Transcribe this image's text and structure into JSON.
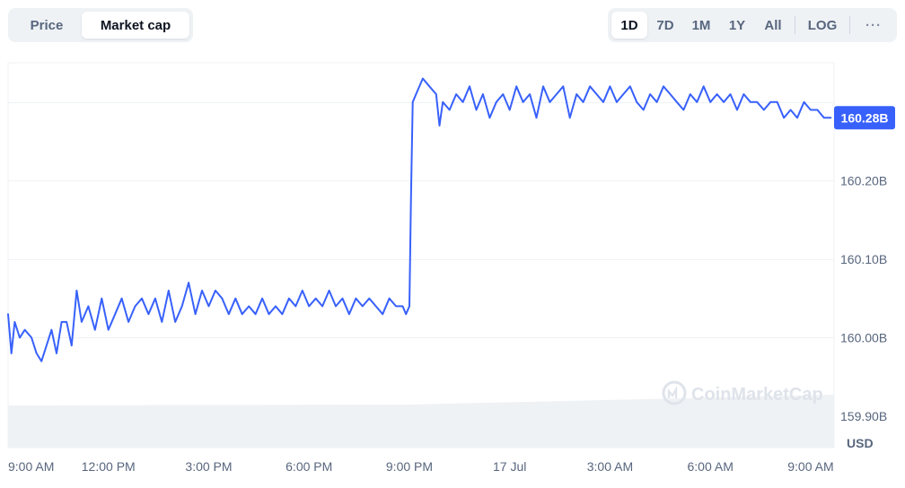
{
  "toggle": {
    "options": [
      {
        "label": "Price",
        "active": false
      },
      {
        "label": "Market cap",
        "active": true
      }
    ]
  },
  "ranges": {
    "options": [
      {
        "label": "1D",
        "active": true
      },
      {
        "label": "7D",
        "active": false
      },
      {
        "label": "1M",
        "active": false
      },
      {
        "label": "1Y",
        "active": false
      },
      {
        "label": "All",
        "active": false
      }
    ],
    "log_label": "LOG",
    "more_label": "···"
  },
  "watermark": "CoinMarketCap",
  "colors": {
    "line": "#3861fb",
    "grid": "#eff2f5",
    "axis_text": "#58667e",
    "volume": "#eff2f5",
    "current_tag_bg": "#3861fb",
    "current_tag_text": "#ffffff",
    "toolbar_bg": "#eff2f5"
  },
  "chart_data": {
    "type": "line",
    "title": "",
    "xlabel": "",
    "ylabel": "USD",
    "unit": "USD",
    "ylim": [
      159.86,
      160.35
    ],
    "y_ticks": [
      {
        "value": 159.9,
        "label": "159.90B"
      },
      {
        "value": 160.0,
        "label": "160.00B"
      },
      {
        "value": 160.1,
        "label": "160.10B"
      },
      {
        "value": 160.2,
        "label": "160.20B"
      }
    ],
    "x_ticks": [
      "9:00 AM",
      "12:00 PM",
      "3:00 PM",
      "6:00 PM",
      "9:00 PM",
      "17 Jul",
      "3:00 AM",
      "6:00 AM",
      "9:00 AM"
    ],
    "x_tick_hours": [
      0,
      3,
      6,
      9,
      12,
      15,
      18,
      21,
      24
    ],
    "x_range_hours": [
      0,
      24.7
    ],
    "current_value": 160.28,
    "current_label": "160.28B",
    "grid": true,
    "legend": "none",
    "series": [
      {
        "x_hours": [
          0,
          0.1,
          0.2,
          0.35,
          0.5,
          0.7,
          0.85,
          1.0,
          1.15,
          1.3,
          1.45,
          1.6,
          1.75,
          1.9,
          2.05,
          2.2,
          2.4,
          2.6,
          2.8,
          3.0,
          3.2,
          3.4,
          3.6,
          3.8,
          4.0,
          4.2,
          4.4,
          4.6,
          4.8,
          5.0,
          5.2,
          5.4,
          5.6,
          5.8,
          6.0,
          6.2,
          6.4,
          6.6,
          6.8,
          7.0,
          7.2,
          7.4,
          7.6,
          7.8,
          8.0,
          8.2,
          8.4,
          8.6,
          8.8,
          9.0,
          9.2,
          9.4,
          9.6,
          9.8,
          10.0,
          10.2,
          10.4,
          10.6,
          10.8,
          11.0,
          11.2,
          11.4,
          11.6,
          11.8,
          11.9,
          12.0,
          12.05,
          12.1,
          12.2,
          12.4,
          12.6,
          12.8,
          12.9,
          13.0,
          13.2,
          13.4,
          13.6,
          13.8,
          14.0,
          14.2,
          14.4,
          14.6,
          14.8,
          15.0,
          15.2,
          15.4,
          15.6,
          15.8,
          16.0,
          16.2,
          16.4,
          16.6,
          16.8,
          17.0,
          17.2,
          17.4,
          17.6,
          17.8,
          18.0,
          18.2,
          18.4,
          18.6,
          18.8,
          19.0,
          19.2,
          19.4,
          19.6,
          19.8,
          20.0,
          20.2,
          20.4,
          20.6,
          20.8,
          21.0,
          21.2,
          21.4,
          21.6,
          21.8,
          22.0,
          22.2,
          22.4,
          22.6,
          22.8,
          23.0,
          23.2,
          23.4,
          23.6,
          23.8,
          24.0,
          24.2,
          24.4,
          24.6
        ],
        "values": [
          160.03,
          159.98,
          160.02,
          160.0,
          160.01,
          160.0,
          159.98,
          159.97,
          159.99,
          160.01,
          159.98,
          160.02,
          160.02,
          159.99,
          160.06,
          160.02,
          160.04,
          160.01,
          160.05,
          160.01,
          160.03,
          160.05,
          160.02,
          160.04,
          160.05,
          160.03,
          160.05,
          160.02,
          160.06,
          160.02,
          160.04,
          160.07,
          160.03,
          160.06,
          160.04,
          160.06,
          160.05,
          160.03,
          160.05,
          160.03,
          160.04,
          160.03,
          160.05,
          160.03,
          160.04,
          160.03,
          160.05,
          160.04,
          160.06,
          160.04,
          160.05,
          160.04,
          160.06,
          160.04,
          160.05,
          160.03,
          160.05,
          160.04,
          160.05,
          160.04,
          160.03,
          160.05,
          160.04,
          160.04,
          160.03,
          160.04,
          160.18,
          160.3,
          160.31,
          160.33,
          160.32,
          160.31,
          160.27,
          160.3,
          160.29,
          160.31,
          160.3,
          160.32,
          160.29,
          160.31,
          160.28,
          160.3,
          160.31,
          160.29,
          160.32,
          160.3,
          160.31,
          160.28,
          160.32,
          160.3,
          160.31,
          160.32,
          160.28,
          160.31,
          160.3,
          160.32,
          160.31,
          160.3,
          160.32,
          160.3,
          160.31,
          160.32,
          160.3,
          160.29,
          160.31,
          160.3,
          160.32,
          160.31,
          160.3,
          160.29,
          160.31,
          160.3,
          160.32,
          160.3,
          160.31,
          160.3,
          160.31,
          160.29,
          160.31,
          160.3,
          160.3,
          160.29,
          160.3,
          160.3,
          160.28,
          160.29,
          160.28,
          160.3,
          160.29,
          160.29,
          160.28,
          160.28
        ]
      }
    ],
    "volume_bar": {
      "visible": true
    }
  }
}
